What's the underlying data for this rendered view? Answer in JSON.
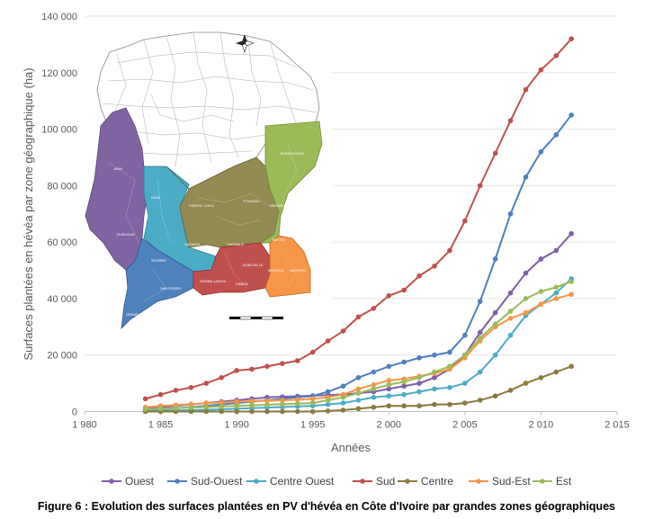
{
  "chart_data": {
    "type": "line",
    "title": "",
    "xlabel": "Années",
    "ylabel": "Surfaces plantées en hévéa par zone géographique (ha)",
    "xlim": [
      1980,
      2015
    ],
    "ylim": [
      0,
      140000
    ],
    "xticks": [
      1980,
      1985,
      1990,
      1995,
      2000,
      2005,
      2010,
      2015
    ],
    "yticks": [
      0,
      20000,
      40000,
      60000,
      80000,
      100000,
      120000,
      140000
    ],
    "xtick_labels": [
      "1 980",
      "1 985",
      "1 990",
      "1 995",
      "2 000",
      "2 005",
      "2 010",
      "2 015"
    ],
    "ytick_labels": [
      "0",
      "20 000",
      "40 000",
      "60 000",
      "80 000",
      "100 000",
      "120 000",
      "140 000"
    ],
    "x": [
      1984,
      1985,
      1986,
      1987,
      1988,
      1989,
      1990,
      1991,
      1992,
      1993,
      1994,
      1995,
      1996,
      1997,
      1998,
      1999,
      2000,
      2001,
      2002,
      2003,
      2004,
      2005,
      2006,
      2007,
      2008,
      2009,
      2010,
      2011,
      2012
    ],
    "series": [
      {
        "name": "Ouest",
        "color": "#7f5fa8",
        "values": [
          1000,
          1500,
          2000,
          2500,
          3000,
          3500,
          4000,
          4500,
          5000,
          5200,
          5400,
          5600,
          5800,
          6000,
          6500,
          7000,
          8000,
          9000,
          10000,
          12000,
          15000,
          20000,
          28000,
          35000,
          42000,
          49000,
          54000,
          57000,
          63000
        ]
      },
      {
        "name": "Sud-Ouest",
        "color": "#4f7fbf",
        "values": [
          500,
          800,
          1200,
          1500,
          2000,
          2500,
          3000,
          3500,
          4000,
          4500,
          5000,
          5500,
          7000,
          9000,
          12000,
          14000,
          16000,
          17500,
          19000,
          20000,
          21000,
          27000,
          39000,
          54000,
          70000,
          83000,
          92000,
          98000,
          105000
        ]
      },
      {
        "name": "Centre Ouest",
        "color": "#4bacc6",
        "values": [
          200,
          300,
          400,
          500,
          600,
          800,
          1000,
          1200,
          1400,
          1600,
          1800,
          2000,
          2500,
          3000,
          4000,
          5000,
          5500,
          6000,
          7000,
          8000,
          8500,
          10000,
          14000,
          20000,
          27000,
          34000,
          38000,
          42000,
          47000
        ]
      },
      {
        "name": "Sud",
        "color": "#c0504d",
        "values": [
          4500,
          6000,
          7500,
          8500,
          10000,
          12000,
          14500,
          15000,
          16000,
          17000,
          18000,
          21000,
          25000,
          28500,
          33500,
          36500,
          41000,
          43000,
          48000,
          51500,
          57000,
          67500,
          80000,
          91500,
          103000,
          114000,
          121000,
          126000,
          132000
        ]
      },
      {
        "name": "Centre",
        "color": "#8a7a3e",
        "values": [
          0,
          0,
          0,
          0,
          0,
          0,
          0,
          0,
          0,
          0,
          0,
          0,
          200,
          500,
          1000,
          1500,
          2000,
          2000,
          2000,
          2500,
          2500,
          3000,
          4000,
          5500,
          7500,
          10000,
          12000,
          14000,
          16000
        ]
      },
      {
        "name": "Sud-Est",
        "color": "#f79646",
        "values": [
          1500,
          2000,
          2300,
          2600,
          3000,
          3200,
          3500,
          3700,
          3800,
          4000,
          4200,
          4500,
          5000,
          6000,
          8000,
          9500,
          11000,
          11500,
          12500,
          13500,
          15000,
          19000,
          25000,
          30000,
          33000,
          35000,
          38000,
          40000,
          41500
        ]
      },
      {
        "name": "Est",
        "color": "#9bbb59",
        "values": [
          800,
          1000,
          1200,
          1400,
          1600,
          1800,
          2000,
          2200,
          2400,
          2600,
          2800,
          3000,
          4000,
          5000,
          6500,
          8000,
          9500,
          10500,
          12000,
          14000,
          16000,
          20000,
          26000,
          31000,
          35500,
          40000,
          42500,
          44000,
          46000
        ]
      }
    ],
    "legend_position": "bottom"
  },
  "map_inset": {
    "zone_labels": {
      "ouest": [
        "MAN",
        "DUEKOUE"
      ],
      "sud_ouest": [
        "SOUBRE",
        "SAN PEDRO",
        "GRAND-BEREBY"
      ],
      "centre_ouest": [
        "ISSIA",
        "GAGNOA"
      ],
      "centre": [
        "SINFRA / DIVO",
        "TOUMODI"
      ],
      "sud": [
        "TIASSALE",
        "AGBOVILLE",
        "GRAND-LAHOU",
        "DABOU"
      ],
      "est": [
        "BONDOUKOU",
        "ABENGOUROU",
        "BETTIE"
      ],
      "sud_est": [
        "BONOUA",
        "ABOISSO"
      ]
    }
  },
  "caption": "Figure 6 : Evolution des surfaces plantées en PV d'hévéa en Côte d'Ivoire par grandes zones géographiques"
}
